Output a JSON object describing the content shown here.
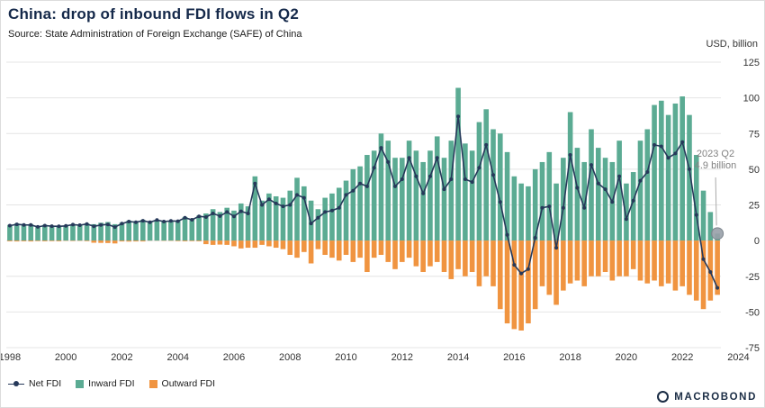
{
  "header": {
    "title": "China: drop of inbound FDI flows in Q2",
    "source": "Source: State Administration of Foreign Exchange (SAFE) of China"
  },
  "axis": {
    "unit_label": "USD, billion",
    "ylim": [
      -75,
      125
    ],
    "y_ticks": [
      125,
      100,
      75,
      50,
      25,
      0,
      -25,
      -50,
      -75
    ],
    "x_tick_years": [
      "1998",
      "2000",
      "2002",
      "2004",
      "2006",
      "2008",
      "2010",
      "2012",
      "2014",
      "2016",
      "2018",
      "2020",
      "2022",
      "2024"
    ]
  },
  "annotation": {
    "line1": "2023 Q2",
    "line2": "4.9 billion"
  },
  "legend": {
    "items": [
      {
        "label": "Net FDI",
        "type": "line"
      },
      {
        "label": "Inward FDI",
        "type": "bar"
      },
      {
        "label": "Outward FDI",
        "type": "bar"
      }
    ]
  },
  "colors": {
    "net": "#26395a",
    "inward": "#5bab93",
    "outward": "#f09440",
    "grid": "#e4e4e4",
    "annotation_dot": "#98a0a8",
    "annotation_line": "#a9a9a9"
  },
  "branding": {
    "logo_text": "MACROBOND"
  },
  "chart_data": {
    "type": "bar",
    "title": "China: drop of inbound FDI flows in Q2",
    "ylabel": "USD, billion",
    "ylim": [
      -75,
      125
    ],
    "frequency": "quarterly",
    "start": "1998 Q1",
    "end": "2023 Q2",
    "grid": true,
    "legend_position": "bottom-left",
    "series": [
      {
        "name": "Inward FDI",
        "type": "bar",
        "color": "#5bab93",
        "values": [
          11,
          12,
          11.5,
          11.5,
          10,
          11,
          10.5,
          10.5,
          10.5,
          11.5,
          11,
          12,
          11.5,
          12.5,
          13,
          11.5,
          12.5,
          14,
          13.5,
          14.5,
          13,
          14.5,
          13.5,
          14,
          14,
          16.5,
          15,
          17.5,
          19,
          22,
          20,
          23,
          21,
          26,
          24,
          45,
          28,
          33,
          31,
          30,
          35,
          44,
          38,
          28,
          22,
          30,
          33,
          37,
          42,
          50,
          52,
          60,
          63,
          75,
          70,
          58,
          58,
          70,
          63,
          55,
          63,
          73,
          58,
          70,
          107,
          68,
          63,
          83,
          92,
          78,
          75,
          62,
          45,
          40,
          38,
          50,
          55,
          62,
          40,
          58,
          90,
          65,
          55,
          78,
          65,
          58,
          55,
          70,
          40,
          48,
          70,
          78,
          95,
          98,
          88,
          96,
          101,
          88,
          60,
          35,
          20,
          4.9
        ]
      },
      {
        "name": "Outward FDI",
        "type": "bar",
        "color": "#f09440",
        "values": [
          -0.5,
          -0.6,
          -0.5,
          -0.6,
          -0.4,
          -0.5,
          -0.4,
          -0.5,
          -0.2,
          -0.3,
          -0.2,
          -0.4,
          -1.5,
          -1.6,
          -1.7,
          -2,
          -0.6,
          -0.7,
          -0.6,
          -0.6,
          -0.1,
          -0.1,
          -0.2,
          -0.2,
          -0.4,
          -0.5,
          -0.4,
          -0.5,
          -2.5,
          -3,
          -2.8,
          -3,
          -4,
          -5.5,
          -5,
          -5,
          -3,
          -4,
          -5,
          -6,
          -10,
          -12,
          -8,
          -16,
          -6,
          -10,
          -12,
          -14,
          -10,
          -15,
          -12,
          -22,
          -12,
          -10,
          -15,
          -20,
          -15,
          -12,
          -18,
          -22,
          -18,
          -15,
          -22,
          -27,
          -20,
          -25,
          -22,
          -32,
          -25,
          -32,
          -48,
          -58,
          -62,
          -63,
          -58,
          -48,
          -32,
          -38,
          -45,
          -35,
          -30,
          -28,
          -32,
          -25,
          -25,
          -22,
          -28,
          -25,
          -25,
          -20,
          -28,
          -30,
          -28,
          -32,
          -30,
          -35,
          -32,
          -38,
          -42,
          -48,
          -42,
          -38
        ]
      },
      {
        "name": "Net FDI",
        "type": "line",
        "color": "#26395a",
        "values": [
          10.5,
          11.4,
          11,
          10.9,
          9.6,
          10.5,
          10.1,
          10,
          10.3,
          11.2,
          10.8,
          11.6,
          10,
          10.9,
          11.3,
          9.5,
          11.9,
          13.3,
          12.9,
          13.9,
          12.9,
          14.4,
          13.3,
          13.8,
          13.6,
          16,
          14.6,
          17,
          16.5,
          19,
          17.2,
          20,
          17,
          20.5,
          19,
          40,
          25,
          29,
          26,
          24,
          25,
          32,
          30,
          12,
          16,
          20,
          21,
          23,
          32,
          35,
          40,
          38,
          51,
          65,
          55,
          38,
          43,
          58,
          45,
          33,
          45,
          58,
          36,
          43,
          87,
          43,
          41,
          51,
          67,
          46,
          27,
          4,
          -17,
          -23,
          -20,
          2,
          23,
          24,
          -5,
          23,
          60,
          37,
          23,
          53,
          40,
          36,
          27,
          45,
          15,
          28,
          42,
          48,
          67,
          66,
          58,
          61,
          69,
          50,
          18,
          -13,
          -22,
          -33.1
        ]
      }
    ],
    "annotated_point": {
      "series": "Inward FDI",
      "x": "2023 Q2",
      "value": 4.9
    }
  }
}
